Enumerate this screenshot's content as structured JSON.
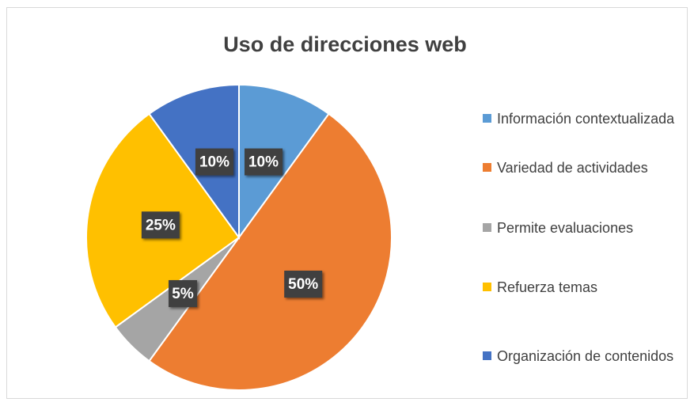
{
  "chart_data": {
    "type": "pie",
    "title": "Uso de direcciones web",
    "categories": [
      "Información contextualizada",
      "Variedad de actividades",
      "Permite evaluaciones",
      "Refuerza temas",
      "Organización de contenidos"
    ],
    "values": [
      10,
      50,
      5,
      25,
      10
    ],
    "value_labels": [
      "10%",
      "50%",
      "5%",
      "25%",
      "10%"
    ],
    "colors": [
      "#5b9bd5",
      "#ed7d31",
      "#a5a5a5",
      "#ffc000",
      "#4472c4"
    ],
    "legend": "right"
  }
}
